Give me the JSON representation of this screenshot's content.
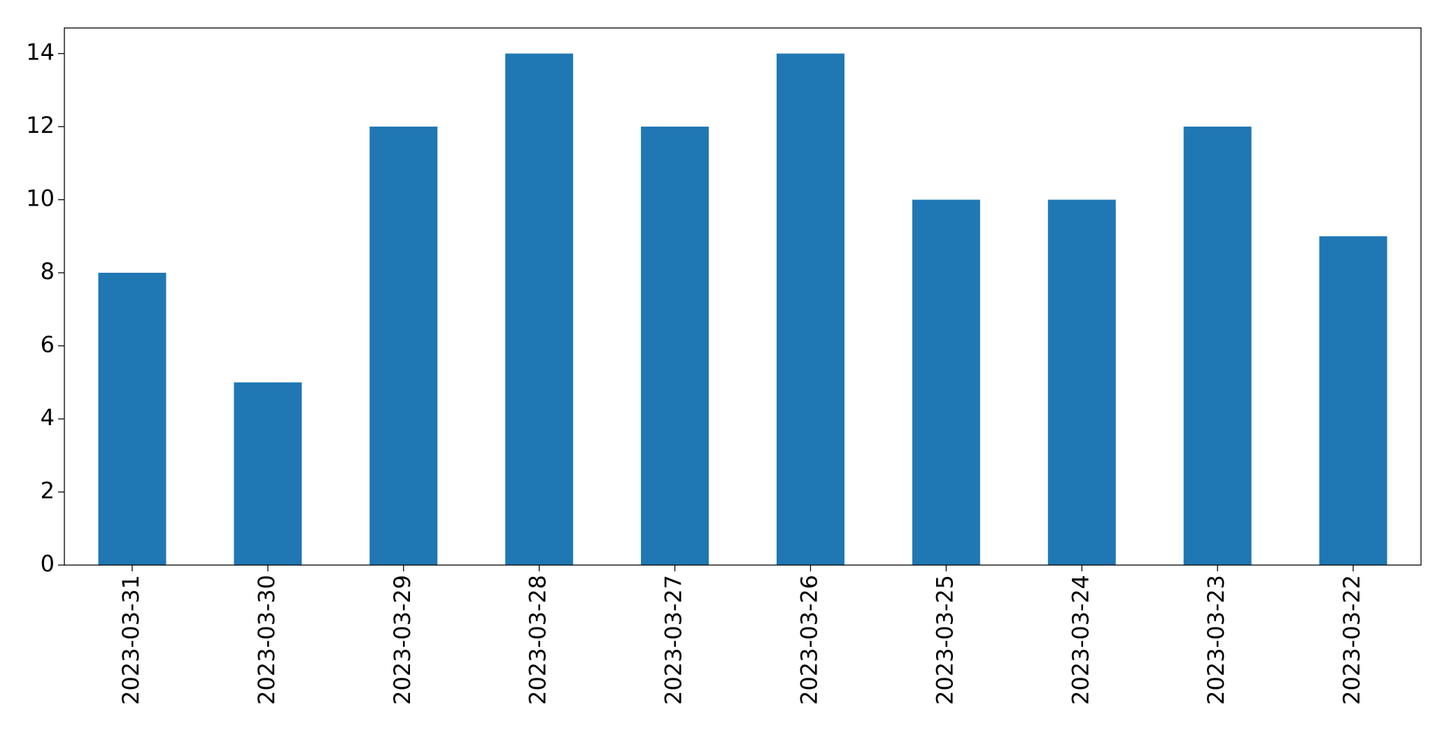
{
  "chart_data": {
    "type": "bar",
    "categories": [
      "2023-03-31",
      "2023-03-30",
      "2023-03-29",
      "2023-03-28",
      "2023-03-27",
      "2023-03-26",
      "2023-03-25",
      "2023-03-24",
      "2023-03-23",
      "2023-03-22"
    ],
    "values": [
      8,
      5,
      12,
      14,
      12,
      14,
      10,
      10,
      12,
      9
    ],
    "color": "#1f77b4",
    "ylim": [
      0,
      14.7
    ],
    "yticks": [
      0,
      2,
      4,
      6,
      8,
      10,
      12,
      14
    ],
    "grid": false
  }
}
